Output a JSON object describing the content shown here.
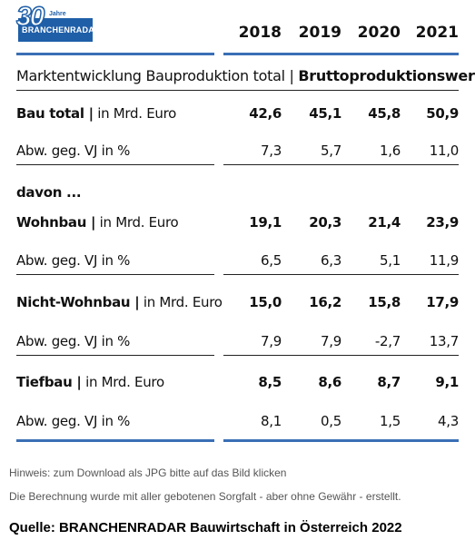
{
  "logo": {
    "number": "30",
    "jahre": "Jahre",
    "brand": "BRANCHENRADAR"
  },
  "years": [
    "2018",
    "2019",
    "2020",
    "2021"
  ],
  "subtitle": {
    "normal": "Marktentwicklung Bauproduktion total | ",
    "bold": "Bruttoproduktionswert"
  },
  "rows": [
    {
      "label_bold": "Bau total |",
      "label_rest": " in Mrd. Euro",
      "values": [
        "42,6",
        "45,1",
        "45,8",
        "50,9"
      ],
      "bold": true
    },
    {
      "label_bold": "",
      "label_rest": "Abw. geg. VJ in %",
      "values": [
        "7,3",
        "5,7",
        "1,6",
        "11,0"
      ],
      "bold": false
    },
    {
      "label_bold": "davon ...",
      "label_rest": "",
      "values": [],
      "bold": false
    },
    {
      "label_bold": "Wohnbau |",
      "label_rest": " in Mrd. Euro",
      "values": [
        "19,1",
        "20,3",
        "21,4",
        "23,9"
      ],
      "bold": true
    },
    {
      "label_bold": "",
      "label_rest": "Abw. geg. VJ in %",
      "values": [
        "6,5",
        "6,3",
        "5,1",
        "11,9"
      ],
      "bold": false
    },
    {
      "label_bold": "Nicht-Wohnbau |",
      "label_rest": " in Mrd. Euro",
      "values": [
        "15,0",
        "16,2",
        "15,8",
        "17,9"
      ],
      "bold": true
    },
    {
      "label_bold": "",
      "label_rest": "Abw. geg. VJ in %",
      "values": [
        "7,9",
        "7,9",
        "-2,7",
        "13,7"
      ],
      "bold": false
    },
    {
      "label_bold": "Tiefbau |",
      "label_rest": " in Mrd. Euro",
      "values": [
        "8,5",
        "8,6",
        "8,7",
        "9,1"
      ],
      "bold": true
    },
    {
      "label_bold": "",
      "label_rest": "Abw. geg. VJ in %",
      "values": [
        "8,1",
        "0,5",
        "1,5",
        "4,3"
      ],
      "bold": false
    }
  ],
  "note1": "Hinweis: zum Download als JPG bitte auf das Bild klicken",
  "note2": "Die Berechnung wurde mit aller gebotenen Sorgfalt - aber ohne Gewähr - erstellt.",
  "source": "Quelle: BRANCHENRADAR Bauwirtschaft in Österreich 2022"
}
